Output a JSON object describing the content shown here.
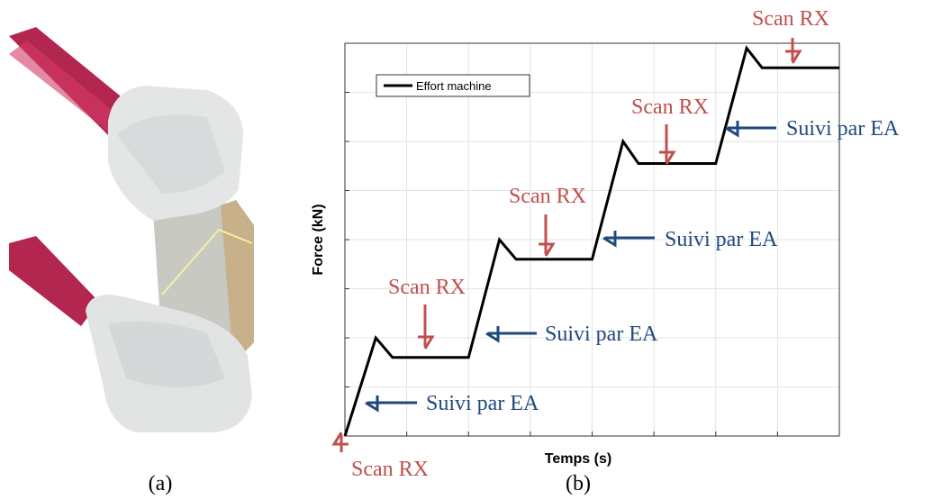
{
  "figure": {
    "panel_a_label": "(a)",
    "panel_b_label": "(b)"
  },
  "chart_data": {
    "type": "line",
    "xlabel": "Temps (s)",
    "ylabel": "Force (kN)",
    "x": [
      0,
      0.5,
      0.77,
      2,
      2.5,
      2.77,
      4,
      4.5,
      4.75,
      6,
      6.5,
      6.75,
      8
    ],
    "series": [
      {
        "name": "Effort machine",
        "color": "#000000",
        "values": [
          0,
          2,
          1.6,
          1.6,
          4,
          3.6,
          3.6,
          6,
          5.55,
          5.55,
          7.9,
          7.5,
          7.5
        ]
      }
    ],
    "xlim": [
      0,
      8
    ],
    "ylim": [
      0,
      8
    ],
    "xticks": [
      0,
      1,
      2,
      3,
      4,
      5,
      6,
      7,
      8
    ],
    "yticks": [
      0,
      1,
      2,
      3,
      4,
      5,
      6,
      7,
      8
    ],
    "grid": true,
    "legend": "upper left",
    "annotations": [
      {
        "text": "Scan RX",
        "color": "#c0504d"
      },
      {
        "text": "Scan RX",
        "color": "#c0504d"
      },
      {
        "text": "Scan RX",
        "color": "#c0504d"
      },
      {
        "text": "Scan RX",
        "color": "#c0504d"
      },
      {
        "text": "Scan RX",
        "color": "#c0504d"
      },
      {
        "text": "Suivi par EA",
        "color": "#1f497d"
      },
      {
        "text": "Suivi par EA",
        "color": "#1f497d"
      },
      {
        "text": "Suivi par EA",
        "color": "#1f497d"
      },
      {
        "text": "Suivi par EA",
        "color": "#1f497d"
      }
    ]
  }
}
